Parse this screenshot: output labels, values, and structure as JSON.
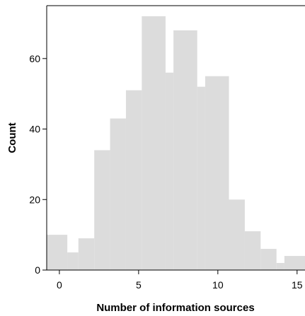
{
  "chart_data": {
    "type": "bar",
    "title": "",
    "xlabel": "Number of information sources",
    "ylabel": "Count",
    "bin_edges": [
      -0.8,
      0.5,
      1.2,
      2.2,
      3.2,
      4.2,
      5.2,
      6.7,
      7.2,
      8.7,
      9.2,
      10.7,
      11.7,
      12.7,
      13.7,
      14.2,
      15.5
    ],
    "values": [
      10,
      5,
      9,
      34,
      43,
      51,
      72,
      56,
      68,
      52,
      55,
      20,
      11,
      6,
      2,
      4
    ],
    "xlim": [
      -0.8,
      15.5
    ],
    "ylim": [
      0,
      75
    ],
    "xticks": [
      0,
      5,
      10,
      15
    ],
    "yticks": [
      0,
      20,
      40,
      60
    ],
    "xtick_labels": [
      "0",
      "5",
      "10",
      "15"
    ],
    "ytick_labels": [
      "0",
      "20",
      "40",
      "60"
    ],
    "bar_color": "#dcdcdc",
    "grid": false
  }
}
